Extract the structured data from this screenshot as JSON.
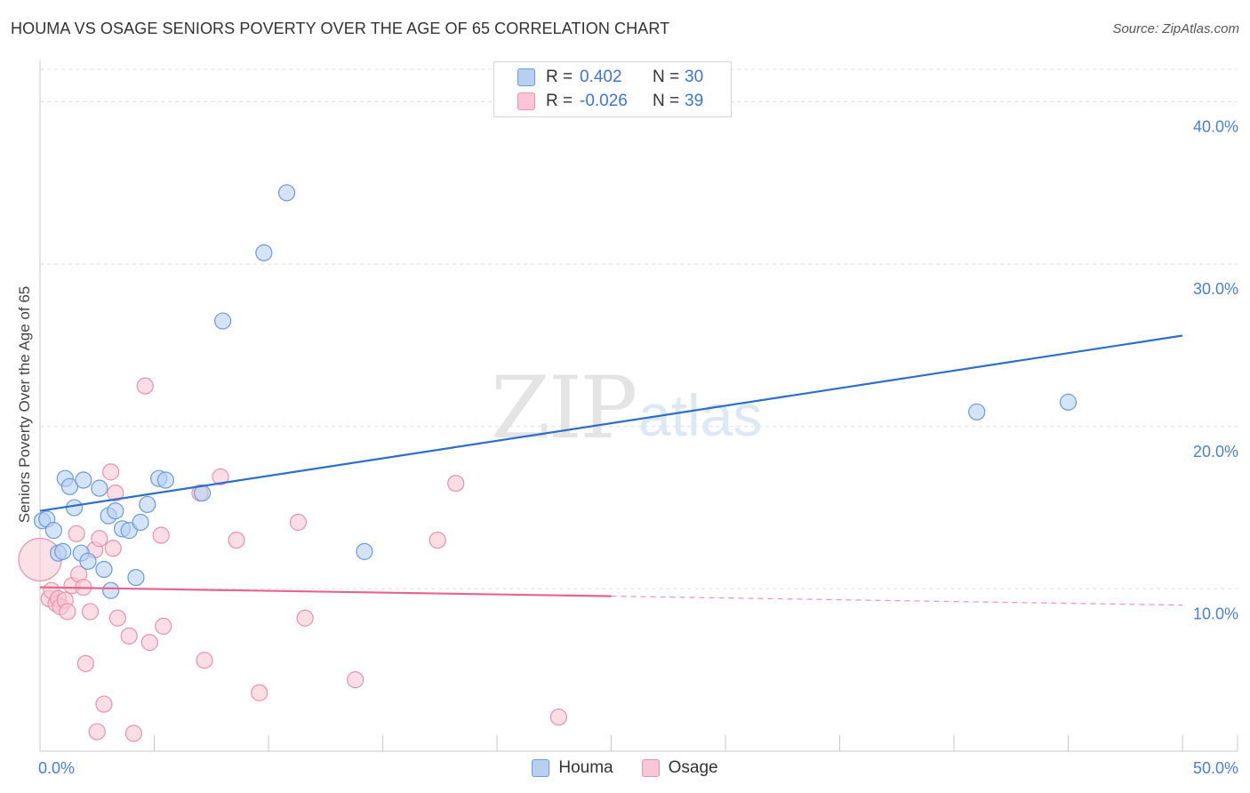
{
  "title": "HOUMA VS OSAGE SENIORS POVERTY OVER THE AGE OF 65 CORRELATION CHART",
  "source": "Source: ZipAtlas.com",
  "watermark": {
    "zip": "ZIP",
    "atlas": "atlas"
  },
  "legend": {
    "rows": [
      {
        "r_label": "R =",
        "r_value": "0.402",
        "n_label": "N =",
        "n_value": "30"
      },
      {
        "r_label": "R =",
        "r_value": "-0.026",
        "n_label": "N =",
        "n_value": "39"
      }
    ]
  },
  "bottom_legend": {
    "houma": "Houma",
    "osage": "Osage"
  },
  "colors": {
    "houma_fill": "#b8d0f0",
    "houma_stroke": "#6c9bd8",
    "houma_line": "#2d6ec9",
    "osage_fill": "#f8c6d6",
    "osage_stroke": "#e892ae",
    "osage_line": "#e5648f",
    "grid": "#dedede",
    "tick_text": "#4a7fd0"
  },
  "chart_data": {
    "type": "scatter",
    "title": "HOUMA VS OSAGE SENIORS POVERTY OVER THE AGE OF 65 CORRELATION CHART",
    "xlabel": "",
    "ylabel": "Seniors Poverty Over the Age of 65",
    "xlim": [
      0,
      50
    ],
    "ylim": [
      0,
      42
    ],
    "x_tick_labels": [
      {
        "value": 0,
        "label": "0.0%"
      },
      {
        "value": 50,
        "label": "50.0%"
      }
    ],
    "y_tick_labels": [
      {
        "value": 10,
        "label": "10.0%"
      },
      {
        "value": 20,
        "label": "20.0%"
      },
      {
        "value": 30,
        "label": "30.0%"
      },
      {
        "value": 40,
        "label": "40.0%"
      }
    ],
    "x_minor_ticks": [
      0,
      5,
      10,
      15,
      20,
      25,
      30,
      35,
      40,
      45,
      50
    ],
    "series": [
      {
        "name": "Houma",
        "r": 0.402,
        "n": 30,
        "trend": {
          "x0": 0,
          "y0": 14.8,
          "x1": 50,
          "y1": 25.6,
          "dashed_from": null
        },
        "points": [
          [
            0.1,
            14.2
          ],
          [
            0.3,
            14.3
          ],
          [
            0.6,
            13.6
          ],
          [
            0.8,
            12.2
          ],
          [
            1.0,
            12.3
          ],
          [
            1.1,
            16.8
          ],
          [
            1.3,
            16.3
          ],
          [
            1.5,
            15.0
          ],
          [
            1.8,
            12.2
          ],
          [
            1.9,
            16.7
          ],
          [
            2.1,
            11.7
          ],
          [
            2.6,
            16.2
          ],
          [
            2.8,
            11.2
          ],
          [
            3.0,
            14.5
          ],
          [
            3.1,
            9.9
          ],
          [
            3.3,
            14.8
          ],
          [
            3.6,
            13.7
          ],
          [
            3.9,
            13.6
          ],
          [
            4.2,
            10.7
          ],
          [
            4.4,
            14.1
          ],
          [
            4.7,
            15.2
          ],
          [
            5.2,
            16.8
          ],
          [
            5.5,
            16.7
          ],
          [
            7.1,
            15.9
          ],
          [
            8.0,
            26.5
          ],
          [
            9.8,
            30.7
          ],
          [
            10.8,
            34.4
          ],
          [
            14.2,
            12.3
          ],
          [
            41.0,
            20.9
          ],
          [
            45.0,
            21.5
          ]
        ]
      },
      {
        "name": "Osage",
        "r": -0.026,
        "n": 39,
        "trend": {
          "x0": 0,
          "y0": 10.1,
          "x1": 50,
          "y1": 9.0,
          "dashed_from": 25
        },
        "points": [
          [
            0.0,
            11.8
          ],
          [
            0.4,
            9.4
          ],
          [
            0.5,
            9.9
          ],
          [
            0.7,
            9.1
          ],
          [
            0.8,
            9.4
          ],
          [
            0.9,
            8.9
          ],
          [
            1.1,
            9.3
          ],
          [
            1.2,
            8.6
          ],
          [
            1.4,
            10.2
          ],
          [
            1.6,
            13.4
          ],
          [
            1.7,
            10.9
          ],
          [
            1.9,
            10.1
          ],
          [
            2.0,
            5.4
          ],
          [
            2.2,
            8.6
          ],
          [
            2.4,
            12.4
          ],
          [
            2.5,
            1.2
          ],
          [
            2.6,
            13.1
          ],
          [
            2.8,
            2.9
          ],
          [
            3.1,
            17.2
          ],
          [
            3.2,
            12.5
          ],
          [
            3.3,
            15.9
          ],
          [
            3.4,
            8.2
          ],
          [
            3.9,
            7.1
          ],
          [
            4.1,
            1.1
          ],
          [
            4.6,
            22.5
          ],
          [
            4.8,
            6.7
          ],
          [
            5.3,
            13.3
          ],
          [
            5.4,
            7.7
          ],
          [
            7.0,
            15.9
          ],
          [
            7.2,
            5.6
          ],
          [
            7.9,
            16.9
          ],
          [
            8.6,
            13.0
          ],
          [
            9.6,
            3.6
          ],
          [
            11.3,
            14.1
          ],
          [
            11.6,
            8.2
          ],
          [
            13.8,
            4.4
          ],
          [
            17.4,
            13.0
          ],
          [
            18.2,
            16.5
          ],
          [
            22.7,
            2.1
          ]
        ]
      }
    ]
  }
}
